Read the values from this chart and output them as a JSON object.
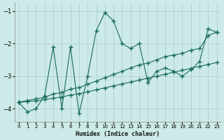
{
  "xlabel": "Humidex (Indice chaleur)",
  "bg_color": "#cceae7",
  "grid_color": "#aacccc",
  "line_color": "#1a6b5e",
  "xlim": [
    -0.5,
    23.5
  ],
  "ylim": [
    -4.4,
    -0.75
  ],
  "yticks": [
    -4,
    -3,
    -2,
    -1
  ],
  "xticks": [
    0,
    1,
    2,
    3,
    4,
    5,
    6,
    7,
    8,
    9,
    10,
    11,
    12,
    13,
    14,
    15,
    16,
    17,
    18,
    19,
    20,
    21,
    22,
    23
  ],
  "series1_x": [
    0,
    1,
    2,
    3,
    4,
    5,
    6,
    7,
    8,
    9,
    10,
    11,
    12,
    13,
    14,
    15,
    16,
    17,
    18,
    19,
    20,
    21,
    22,
    23
  ],
  "series1_y": [
    -3.8,
    -4.1,
    -4.0,
    -3.6,
    -2.1,
    -4.0,
    -2.1,
    -4.15,
    -3.0,
    -1.6,
    -1.05,
    -1.3,
    -2.0,
    -2.15,
    -2.0,
    -3.2,
    -2.85,
    -2.75,
    -2.85,
    -3.0,
    -2.8,
    -2.55,
    -1.55,
    -1.65
  ],
  "series2_x": [
    0,
    1,
    2,
    3,
    4,
    5,
    6,
    7,
    8,
    9,
    10,
    11,
    12,
    13,
    14,
    15,
    16,
    17,
    18,
    19,
    20,
    21,
    22,
    23
  ],
  "series2_y": [
    -3.8,
    -3.75,
    -3.7,
    -3.65,
    -3.55,
    -3.5,
    -3.4,
    -3.35,
    -3.25,
    -3.15,
    -3.05,
    -2.95,
    -2.85,
    -2.75,
    -2.65,
    -2.6,
    -2.5,
    -2.4,
    -2.35,
    -2.3,
    -2.2,
    -2.15,
    -1.75,
    -1.65
  ],
  "series3_x": [
    0,
    1,
    2,
    3,
    4,
    5,
    6,
    7,
    8,
    9,
    10,
    11,
    12,
    13,
    14,
    15,
    16,
    17,
    18,
    19,
    20,
    21,
    22,
    23
  ],
  "series3_y": [
    -3.8,
    -3.78,
    -3.76,
    -3.72,
    -3.68,
    -3.64,
    -3.58,
    -3.54,
    -3.48,
    -3.42,
    -3.36,
    -3.3,
    -3.24,
    -3.18,
    -3.12,
    -3.06,
    -3.0,
    -2.94,
    -2.88,
    -2.82,
    -2.76,
    -2.7,
    -2.64,
    -2.58
  ]
}
